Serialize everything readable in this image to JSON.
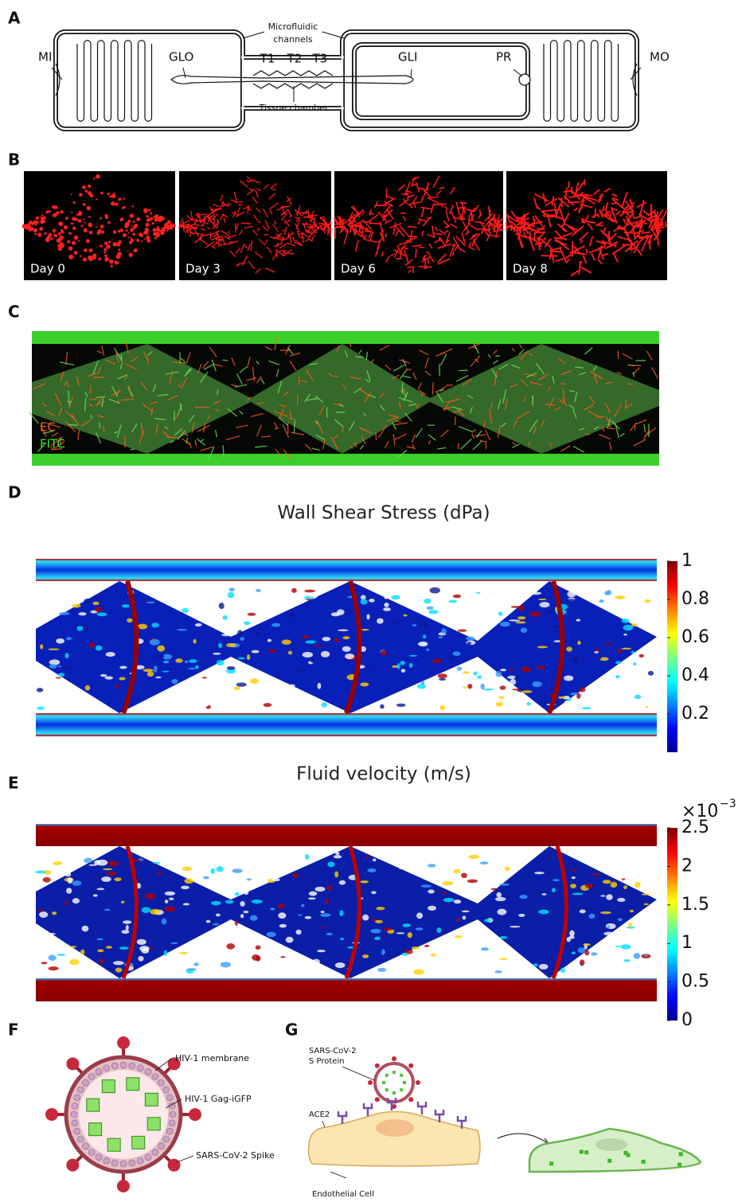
{
  "panel_a": {
    "label": "A",
    "microfluidic_label": "Microfluidic",
    "channels_label": "channels",
    "mi": "MI",
    "glo": "GLO",
    "chambers": [
      "T1",
      "T2",
      "T3"
    ],
    "gli": "GLI",
    "pr": "PR",
    "mo": "MO",
    "tissue_chamber": "Tissue chamber"
  },
  "panel_b": {
    "label": "B",
    "days": [
      "Day 0",
      "Day 3",
      "Day 6",
      "Day 8"
    ]
  },
  "panel_c": {
    "label": "C",
    "legend": [
      "EC",
      "FITC"
    ]
  },
  "panel_d": {
    "label": "D",
    "title": "Wall Shear Stress (dPa)",
    "colorbar": {
      "range": [
        0,
        1
      ],
      "ticks": [
        0.2,
        0.4,
        0.6,
        0.8,
        1
      ]
    }
  },
  "panel_e": {
    "label": "E",
    "title": "Fluid velocity (m/s)",
    "multiplier": "×10",
    "exponent": "−3",
    "colorbar": {
      "range": [
        0,
        2.5
      ],
      "ticks": [
        0,
        0.5,
        1,
        1.5,
        2,
        2.5
      ]
    }
  },
  "panel_f": {
    "label": "F",
    "membrane": "HIV-1 membrane",
    "gag": "HIV-1 Gag-iGFP",
    "spike": "SARS-CoV-2 Spike"
  },
  "panel_g": {
    "label": "G",
    "s_protein": [
      "SARS-CoV-2",
      "S Protein"
    ],
    "ace2": "ACE2",
    "cell": "Endothelial Cell"
  }
}
